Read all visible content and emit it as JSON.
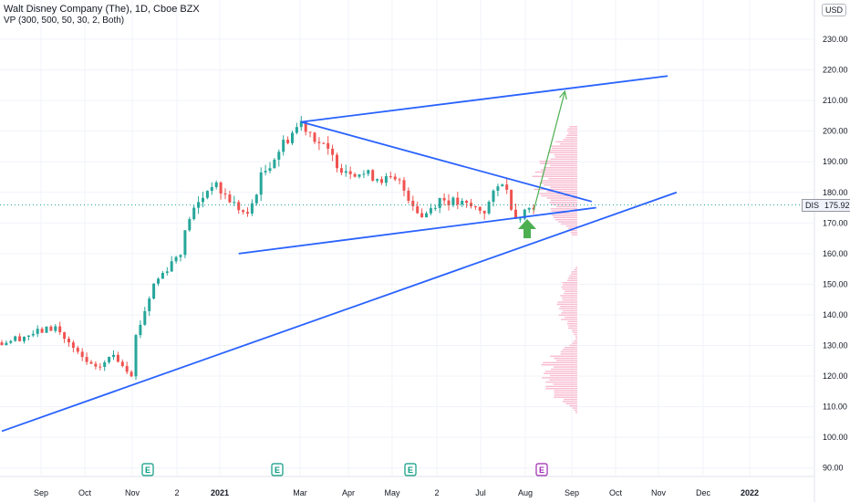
{
  "header": {
    "title": "Walt Disney Company (The), 1D, Cboe BZX",
    "indicator": "VP (300, 500, 50, 30, 2, Both)",
    "currency": "USD"
  },
  "price_tag": {
    "symbol": "DIS",
    "value": "175.92"
  },
  "earnings_markers": [
    {
      "label": "E",
      "date_index": 0,
      "state": "past"
    },
    {
      "label": "E",
      "date_index": 1,
      "state": "past"
    },
    {
      "label": "E",
      "date_index": 2,
      "state": "past"
    },
    {
      "label": "E",
      "date_index": 3,
      "state": "upcoming"
    }
  ],
  "colors": {
    "up": "#26a69a",
    "down": "#ef5350",
    "trendline": "#2962ff",
    "projection": "#4caf50",
    "volume_profile": "#f8bbd0",
    "grid": "#f0f3fa",
    "price_line": "#26a69a"
  },
  "chart_data": {
    "type": "candlestick",
    "title": "Walt Disney Company (The), 1D, Cboe BZX",
    "y_axis": {
      "ticks": [
        "90.00",
        "100.00",
        "110.00",
        "120.00",
        "130.00",
        "140.00",
        "150.00",
        "160.00",
        "170.00",
        "180.00",
        "190.00",
        "200.00",
        "210.00",
        "220.00",
        "230.00"
      ],
      "range": [
        86,
        245
      ],
      "current": 175.92
    },
    "x_axis": {
      "ticks": [
        "Sep",
        "Oct",
        "Nov",
        "2",
        "2021",
        "Mar",
        "Apr",
        "May",
        "2",
        "Jul",
        "Aug",
        "Sep",
        "Oct",
        "Nov",
        "Dec",
        "2022"
      ]
    },
    "price_path": [
      {
        "t": 0,
        "p": 131
      },
      {
        "t": 12,
        "p": 136
      },
      {
        "t": 17,
        "p": 127
      },
      {
        "t": 21,
        "p": 122
      },
      {
        "t": 25,
        "p": 127
      },
      {
        "t": 29,
        "p": 121
      },
      {
        "t": 30,
        "p": 133
      },
      {
        "t": 34,
        "p": 150
      },
      {
        "t": 40,
        "p": 161
      },
      {
        "t": 42,
        "p": 172
      },
      {
        "t": 47,
        "p": 183
      },
      {
        "t": 55,
        "p": 172
      },
      {
        "t": 58,
        "p": 185
      },
      {
        "t": 63,
        "p": 196
      },
      {
        "t": 67,
        "p": 203
      },
      {
        "t": 76,
        "p": 188
      },
      {
        "t": 89,
        "p": 183
      },
      {
        "t": 94,
        "p": 172
      },
      {
        "t": 98,
        "p": 178
      },
      {
        "t": 108,
        "p": 174
      },
      {
        "t": 112,
        "p": 184
      },
      {
        "t": 115,
        "p": 172
      },
      {
        "t": 119,
        "p": 176
      }
    ],
    "trendlines": [
      {
        "name": "upper-triangle-line",
        "from": {
          "t": 67,
          "p": 203
        },
        "to": {
          "t": 132,
          "p": 177
        }
      },
      {
        "name": "lower-triangle-line",
        "from": {
          "t": 53,
          "p": 160
        },
        "to": {
          "t": 133,
          "p": 175
        }
      },
      {
        "name": "upper-channel-line",
        "from": {
          "t": 67,
          "p": 203
        },
        "to": {
          "t": 149,
          "p": 218
        }
      },
      {
        "name": "long-support-line",
        "from": {
          "t": 0,
          "p": 102
        },
        "to": {
          "t": 151,
          "p": 180
        }
      },
      {
        "name": "projection-arrow",
        "from": {
          "t": 119,
          "p": 174
        },
        "to": {
          "t": 126,
          "p": 213
        }
      }
    ],
    "volume_profile": [
      {
        "lo": 108,
        "hi": 132,
        "max": 45
      },
      {
        "lo": 132,
        "hi": 156,
        "max": 25
      },
      {
        "lo": 166,
        "hi": 202,
        "max": 50
      }
    ],
    "grid": true
  }
}
